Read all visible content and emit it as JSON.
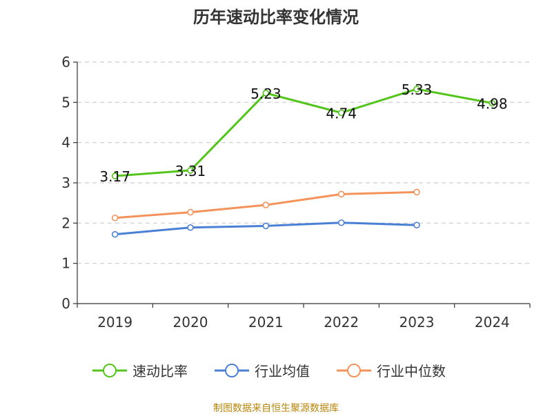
{
  "chart_data": {
    "type": "line",
    "title": "历年速动比率变化情况",
    "categories": [
      "2019",
      "2020",
      "2021",
      "2022",
      "2023",
      "2024"
    ],
    "ylim": [
      0,
      6
    ],
    "yticks": [
      "0",
      "1",
      "2",
      "3",
      "4",
      "5",
      "6"
    ],
    "grid": true,
    "legend_position": "bottom",
    "series": [
      {
        "name": "速动比率",
        "color": "#52c41a",
        "values": [
          3.17,
          3.31,
          5.23,
          4.74,
          5.33,
          4.98
        ],
        "labels": [
          "3.17",
          "3.31",
          "5.23",
          "4.74",
          "5.33",
          "4.98"
        ]
      },
      {
        "name": "行业均值",
        "color": "#4a7fd6",
        "values": [
          1.72,
          1.89,
          1.93,
          2.01,
          1.95,
          null
        ]
      },
      {
        "name": "行业中位数",
        "color": "#f4925a",
        "values": [
          2.13,
          2.27,
          2.45,
          2.72,
          2.77,
          null
        ]
      }
    ]
  },
  "source": "制图数据来自恒生聚源数据库"
}
